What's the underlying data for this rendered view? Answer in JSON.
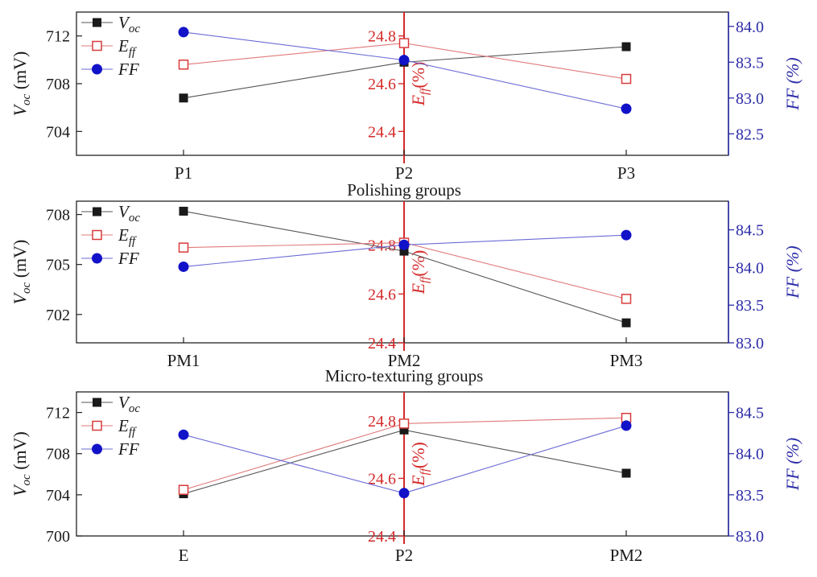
{
  "chart_data": [
    {
      "type": "line",
      "categories": [
        "P1",
        "P2",
        "P3"
      ],
      "xlabel": "Polishing groups",
      "axes": {
        "left": {
          "label_main": "V",
          "label_sub": "oc",
          "label_unit": " (mV)",
          "ylim": [
            702,
            714
          ],
          "ticks": [
            704,
            708,
            712
          ],
          "color": "#1a1a1a"
        },
        "mid": {
          "label_main": "E",
          "label_sub": "ff",
          "label_unit": "(%)",
          "ylim": [
            24.3,
            24.9
          ],
          "ticks": [
            24.4,
            24.6,
            24.8
          ],
          "color": "#d42a2a"
        },
        "right": {
          "label_main": "FF",
          "label_unit": " (%)",
          "ylim": [
            82.2,
            84.2
          ],
          "ticks": [
            82.5,
            83.0,
            83.5,
            84.0
          ],
          "color": "#2c2ca8"
        }
      },
      "series": [
        {
          "name_main": "V",
          "name_sub": "oc",
          "axis": "left",
          "marker": "filled-square",
          "color": "#1a1a1a",
          "values": [
            706.8,
            709.8,
            711.1
          ]
        },
        {
          "name_main": "E",
          "name_sub": "ff",
          "axis": "mid",
          "marker": "open-square",
          "color": "#d93a3a",
          "values": [
            24.68,
            24.77,
            24.62
          ]
        },
        {
          "name_main": "FF",
          "axis": "right",
          "marker": "filled-circle",
          "color": "#1212c8",
          "values": [
            83.92,
            83.53,
            82.85
          ]
        }
      ]
    },
    {
      "type": "line",
      "categories": [
        "PM1",
        "PM2",
        "PM3"
      ],
      "xlabel": "Micro-texturing groups",
      "axes": {
        "left": {
          "label_main": "V",
          "label_sub": "oc",
          "label_unit": " (mV)",
          "ylim": [
            700.3,
            708.8
          ],
          "ticks": [
            702,
            705,
            708
          ],
          "color": "#1a1a1a"
        },
        "mid": {
          "label_main": "E",
          "label_sub": "ff",
          "label_unit": "(%)",
          "ylim": [
            24.4,
            24.98
          ],
          "ticks": [
            24.4,
            24.6,
            24.8
          ],
          "color": "#d42a2a"
        },
        "right": {
          "label_main": "FF",
          "label_unit": " (%)",
          "ylim": [
            83.0,
            84.88
          ],
          "ticks": [
            83.0,
            83.5,
            84.0,
            84.5
          ],
          "color": "#2c2ca8"
        }
      },
      "series": [
        {
          "name_main": "V",
          "name_sub": "oc",
          "axis": "left",
          "marker": "filled-square",
          "color": "#1a1a1a",
          "values": [
            708.2,
            705.8,
            701.5
          ]
        },
        {
          "name_main": "E",
          "name_sub": "ff",
          "axis": "mid",
          "marker": "open-square",
          "color": "#d93a3a",
          "values": [
            24.79,
            24.81,
            24.58
          ]
        },
        {
          "name_main": "FF",
          "axis": "right",
          "marker": "filled-circle",
          "color": "#1212c8",
          "values": [
            84.01,
            84.3,
            84.43
          ]
        }
      ]
    },
    {
      "type": "line",
      "categories": [
        "E",
        "P2",
        "PM2"
      ],
      "xlabel": "",
      "axes": {
        "left": {
          "label_main": "V",
          "label_sub": "oc",
          "label_unit": " (mV)",
          "ylim": [
            700,
            714
          ],
          "ticks": [
            700,
            704,
            708,
            712
          ],
          "color": "#1a1a1a"
        },
        "mid": {
          "label_main": "E",
          "label_sub": "ff",
          "label_unit": "(%)",
          "ylim": [
            24.4,
            24.9
          ],
          "ticks": [
            24.4,
            24.6,
            24.8
          ],
          "color": "#d42a2a"
        },
        "right": {
          "label_main": "FF",
          "label_unit": " (%)",
          "ylim": [
            83.0,
            84.75
          ],
          "ticks": [
            83.0,
            83.5,
            84.0,
            84.5
          ],
          "color": "#2c2ca8"
        }
      },
      "series": [
        {
          "name_main": "V",
          "name_sub": "oc",
          "axis": "left",
          "marker": "filled-square",
          "color": "#1a1a1a",
          "values": [
            704.1,
            710.3,
            706.1
          ]
        },
        {
          "name_main": "E",
          "name_sub": "ff",
          "axis": "mid",
          "marker": "open-square",
          "color": "#d93a3a",
          "values": [
            24.56,
            24.79,
            24.81
          ]
        },
        {
          "name_main": "FF",
          "axis": "right",
          "marker": "filled-circle",
          "color": "#1212c8",
          "values": [
            84.23,
            83.52,
            84.34
          ]
        }
      ]
    }
  ]
}
